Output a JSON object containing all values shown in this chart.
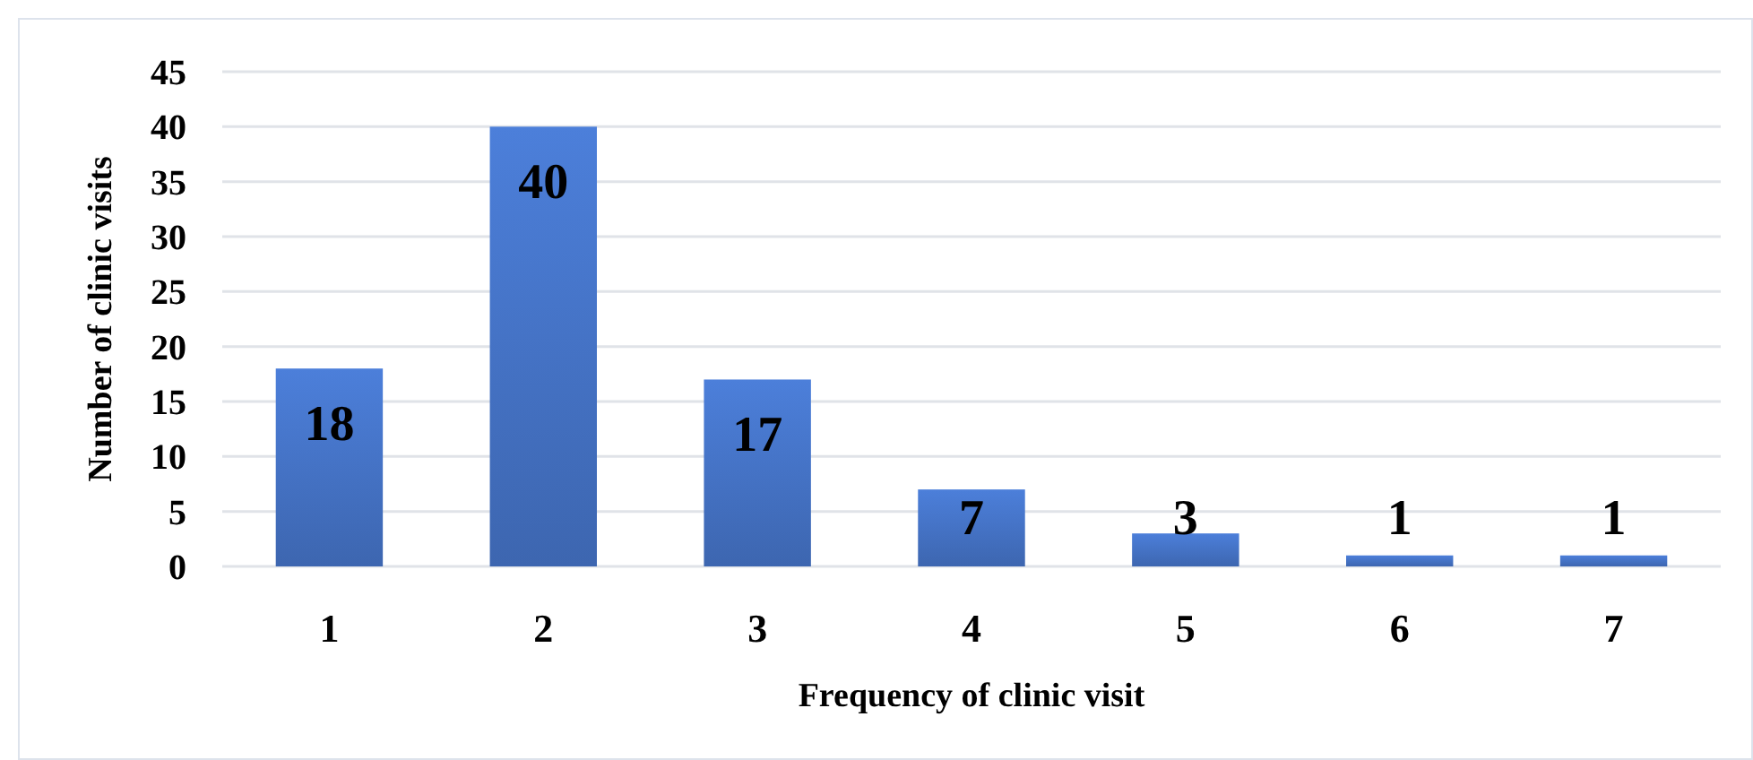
{
  "chart_data": {
    "type": "bar",
    "xlabel": "Frequency of clinic visit",
    "ylabel": "Number of clinic visits",
    "categories": [
      "1",
      "2",
      "3",
      "4",
      "5",
      "6",
      "7"
    ],
    "values": [
      18,
      40,
      17,
      7,
      3,
      1,
      1
    ],
    "color": "#4472c4",
    "ylim": [
      0,
      45
    ],
    "yticks": [
      0,
      5,
      10,
      15,
      20,
      25,
      30,
      35,
      40,
      45
    ],
    "grid": "y",
    "data_labels": true
  }
}
